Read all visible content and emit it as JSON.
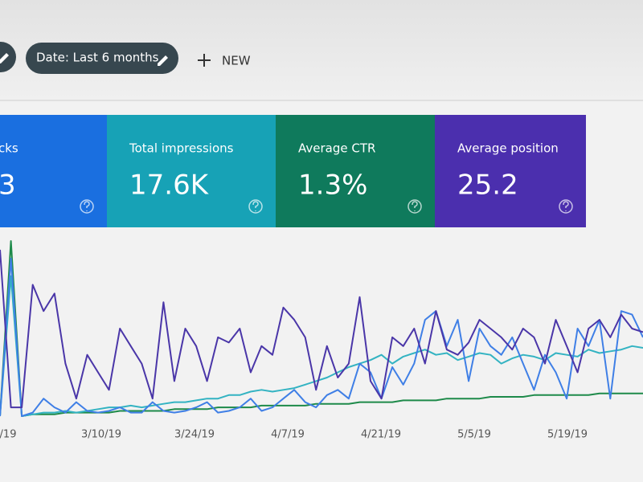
{
  "toolbar": {
    "filter_chip": "Date: Last 6 months",
    "new_button": "NEW"
  },
  "metrics": [
    {
      "label": "cks",
      "value": "3",
      "color": "#1a6fe0"
    },
    {
      "label": "Total impressions",
      "value": "17.6K",
      "color": "#17a2b6"
    },
    {
      "label": "Average CTR",
      "value": "1.3%",
      "color": "#0f7a5c"
    },
    {
      "label": "Average position",
      "value": "25.2",
      "color": "#4b2fae"
    }
  ],
  "chart": {
    "type": "line",
    "x_labels": [
      "/19",
      "3/10/19",
      "3/24/19",
      "4/7/19",
      "4/21/19",
      "5/5/19",
      "5/19/19"
    ],
    "ylim": [
      0,
      100
    ],
    "series": [
      {
        "color": "#4a36a8",
        "values": [
          95,
          5,
          5,
          75,
          60,
          70,
          30,
          10,
          35,
          25,
          15,
          50,
          40,
          30,
          10,
          65,
          20,
          50,
          40,
          20,
          45,
          42,
          50,
          25,
          40,
          35,
          62,
          55,
          45,
          15,
          40,
          22,
          30,
          68,
          20,
          10,
          45,
          40,
          50,
          30,
          60,
          38,
          35,
          42,
          55,
          50,
          45,
          38,
          50,
          45,
          30,
          55,
          40,
          25,
          50,
          55,
          45,
          58,
          50,
          48
        ]
      },
      {
        "color": "#3f7fe6",
        "values": [
          0,
          90,
          0,
          2,
          10,
          5,
          2,
          8,
          3,
          2,
          3,
          5,
          2,
          2,
          8,
          3,
          2,
          3,
          5,
          8,
          2,
          3,
          5,
          10,
          3,
          5,
          10,
          15,
          8,
          5,
          12,
          15,
          10,
          30,
          25,
          10,
          28,
          18,
          30,
          55,
          60,
          40,
          55,
          20,
          50,
          40,
          35,
          45,
          30,
          15,
          35,
          25,
          10,
          50,
          40,
          55,
          10,
          60,
          58,
          45
        ]
      },
      {
        "color": "#33b3c2",
        "values": [
          0,
          80,
          0,
          1,
          2,
          2,
          3,
          2,
          3,
          4,
          5,
          5,
          6,
          5,
          6,
          7,
          8,
          8,
          9,
          10,
          10,
          12,
          12,
          14,
          15,
          14,
          15,
          16,
          18,
          20,
          22,
          25,
          28,
          30,
          32,
          35,
          30,
          34,
          36,
          38,
          35,
          36,
          32,
          34,
          36,
          35,
          30,
          33,
          35,
          34,
          32,
          36,
          35,
          34,
          38,
          36,
          37,
          38,
          40,
          39
        ]
      },
      {
        "color": "#1e8a4a",
        "values": [
          0,
          100,
          0,
          1,
          1,
          1,
          2,
          2,
          2,
          2,
          2,
          3,
          3,
          3,
          3,
          3,
          4,
          4,
          4,
          4,
          5,
          5,
          5,
          5,
          6,
          6,
          6,
          6,
          6,
          7,
          7,
          7,
          7,
          8,
          8,
          8,
          8,
          9,
          9,
          9,
          9,
          10,
          10,
          10,
          10,
          11,
          11,
          11,
          11,
          12,
          12,
          12,
          12,
          12,
          12,
          13,
          13,
          13,
          13,
          13
        ]
      }
    ]
  }
}
